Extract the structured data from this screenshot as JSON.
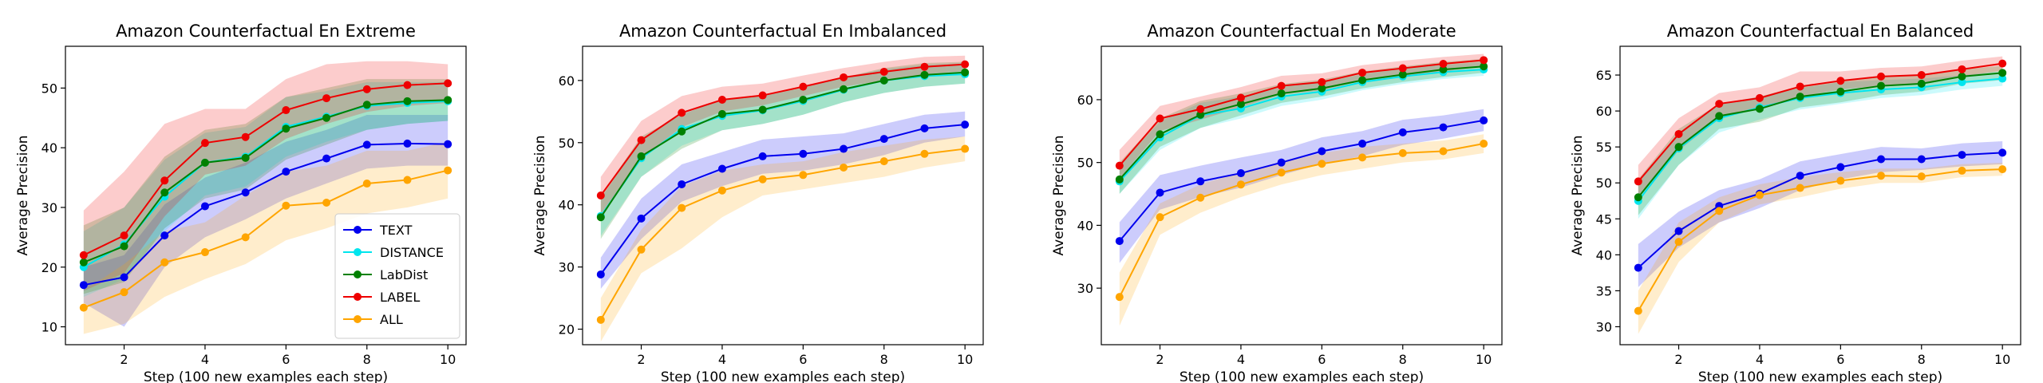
{
  "figure": {
    "series_colors": {
      "TEXT": "#0000ee",
      "DISTANCE": "#00e5ee",
      "LabDist": "#008000",
      "LABEL": "#ee0000",
      "ALL": "#ffa500"
    }
  },
  "chart_data": [
    {
      "type": "line",
      "title": "Amazon Counterfactual En Extreme",
      "xlabel": "Step (100 new examples each step)",
      "ylabel": "Average Precision",
      "xlim": [
        0.55,
        10.45
      ],
      "ylim": [
        7,
        57
      ],
      "xticks": [
        2,
        4,
        6,
        8,
        10
      ],
      "yticks": [
        10,
        20,
        30,
        40,
        50
      ],
      "legend": "lower-right",
      "x": [
        1,
        2,
        3,
        4,
        5,
        6,
        7,
        8,
        9,
        10
      ],
      "series": [
        {
          "name": "TEXT",
          "values": [
            17.0,
            18.3,
            25.3,
            30.2,
            32.5,
            36.0,
            38.2,
            40.5,
            40.7,
            40.6
          ],
          "lower": [
            14.0,
            10.0,
            20.0,
            25.0,
            28.0,
            31.5,
            34.0,
            36.5,
            37.0,
            37.0
          ],
          "upper": [
            20.0,
            22.0,
            30.5,
            35.0,
            37.5,
            41.0,
            43.0,
            45.5,
            45.5,
            45.5
          ]
        },
        {
          "name": "DISTANCE",
          "values": [
            20.0,
            23.8,
            31.8,
            37.5,
            38.5,
            43.5,
            45.2,
            47.0,
            47.5,
            47.8
          ],
          "lower": [
            15.0,
            18.0,
            26.0,
            32.0,
            33.5,
            38.5,
            41.0,
            43.0,
            44.0,
            44.5
          ],
          "upper": [
            26.0,
            30.0,
            38.0,
            42.5,
            43.5,
            48.5,
            49.5,
            51.0,
            51.0,
            51.0
          ]
        },
        {
          "name": "LabDist",
          "values": [
            20.8,
            23.5,
            32.5,
            37.5,
            38.3,
            43.2,
            45.0,
            47.2,
            47.8,
            48.0
          ],
          "lower": [
            15.5,
            17.5,
            26.5,
            31.5,
            33.0,
            38.0,
            40.5,
            43.0,
            44.0,
            44.5
          ],
          "upper": [
            27.0,
            30.0,
            38.5,
            43.0,
            44.0,
            48.5,
            50.0,
            51.5,
            51.5,
            51.5
          ]
        },
        {
          "name": "LABEL",
          "values": [
            22.0,
            25.3,
            34.5,
            40.8,
            41.8,
            46.3,
            48.3,
            49.8,
            50.5,
            50.8
          ],
          "lower": [
            16.0,
            19.0,
            28.5,
            35.5,
            37.0,
            41.5,
            44.0,
            46.0,
            47.0,
            47.5
          ],
          "upper": [
            29.5,
            36.0,
            44.0,
            46.5,
            46.5,
            51.5,
            54.0,
            54.5,
            54.5,
            54.0
          ]
        },
        {
          "name": "ALL",
          "values": [
            13.2,
            15.8,
            20.8,
            22.5,
            25.0,
            30.3,
            30.8,
            34.0,
            34.6,
            36.2
          ],
          "lower": [
            8.8,
            10.5,
            15.0,
            18.0,
            20.5,
            24.5,
            26.5,
            29.0,
            30.0,
            31.5
          ],
          "upper": [
            16.0,
            20.5,
            26.0,
            27.5,
            32.0,
            36.0,
            37.0,
            39.5,
            39.5,
            41.0
          ]
        }
      ]
    },
    {
      "type": "line",
      "title": "Amazon Counterfactual En Imbalanced",
      "xlabel": "Step (100 new examples each step)",
      "ylabel": "Average Precision",
      "xlim": [
        0.55,
        10.45
      ],
      "ylim": [
        17.5,
        65.5
      ],
      "xticks": [
        2,
        4,
        6,
        8,
        10
      ],
      "yticks": [
        20,
        30,
        40,
        50,
        60
      ],
      "x": [
        1,
        2,
        3,
        4,
        5,
        6,
        7,
        8,
        9,
        10
      ],
      "series": [
        {
          "name": "TEXT",
          "values": [
            28.8,
            37.8,
            43.3,
            45.8,
            47.8,
            48.2,
            49.0,
            50.6,
            52.3,
            52.9
          ],
          "lower": [
            26.5,
            34.5,
            40.5,
            43.0,
            45.0,
            45.5,
            46.5,
            48.0,
            50.0,
            51.0
          ],
          "upper": [
            31.5,
            41.0,
            46.5,
            48.5,
            50.5,
            51.0,
            51.5,
            53.0,
            54.5,
            55.0
          ]
        },
        {
          "name": "DISTANCE",
          "values": [
            38.2,
            47.5,
            52.2,
            54.3,
            55.2,
            56.7,
            58.5,
            60.0,
            60.7,
            61.0
          ],
          "lower": [
            35.0,
            44.5,
            49.5,
            52.0,
            53.0,
            54.5,
            56.5,
            58.0,
            59.0,
            59.5
          ],
          "upper": [
            41.0,
            50.5,
            55.0,
            56.8,
            57.5,
            58.8,
            60.5,
            61.8,
            62.5,
            62.8
          ]
        },
        {
          "name": "LabDist",
          "values": [
            38.0,
            47.8,
            51.8,
            54.6,
            55.3,
            56.9,
            58.6,
            60.0,
            60.9,
            61.3
          ],
          "lower": [
            34.5,
            44.5,
            49.0,
            52.0,
            53.0,
            54.5,
            56.5,
            58.0,
            59.0,
            59.5
          ],
          "upper": [
            41.5,
            51.0,
            54.5,
            57.0,
            57.5,
            59.0,
            60.5,
            62.0,
            62.8,
            63.0
          ]
        },
        {
          "name": "LABEL",
          "values": [
            41.5,
            50.4,
            54.8,
            56.9,
            57.6,
            59.0,
            60.5,
            61.4,
            62.2,
            62.6
          ],
          "lower": [
            38.5,
            47.5,
            52.5,
            55.0,
            56.0,
            57.5,
            59.0,
            60.0,
            61.0,
            61.5
          ],
          "upper": [
            44.5,
            53.5,
            57.5,
            59.0,
            59.5,
            60.8,
            62.0,
            63.0,
            63.8,
            64.0
          ]
        },
        {
          "name": "ALL",
          "values": [
            21.5,
            32.8,
            39.5,
            42.3,
            44.1,
            44.8,
            46.0,
            47.0,
            48.2,
            49.0
          ],
          "lower": [
            18.0,
            29.0,
            33.0,
            38.0,
            41.5,
            42.5,
            43.5,
            44.5,
            46.0,
            47.0
          ],
          "upper": [
            25.0,
            36.0,
            43.0,
            45.5,
            46.5,
            47.0,
            48.5,
            49.5,
            50.5,
            51.0
          ]
        }
      ]
    },
    {
      "type": "line",
      "title": "Amazon Counterfactual En Moderate",
      "xlabel": "Step (100 new examples each step)",
      "ylabel": "Average Precision",
      "xlim": [
        0.55,
        10.45
      ],
      "ylim": [
        21,
        68.5
      ],
      "xticks": [
        2,
        4,
        6,
        8,
        10
      ],
      "yticks": [
        30,
        40,
        50,
        60
      ],
      "x": [
        1,
        2,
        3,
        4,
        5,
        6,
        7,
        8,
        9,
        10
      ],
      "series": [
        {
          "name": "TEXT",
          "values": [
            37.5,
            45.2,
            47.0,
            48.3,
            50.0,
            51.8,
            53.0,
            54.8,
            55.6,
            56.7
          ],
          "lower": [
            34.0,
            42.5,
            44.5,
            46.0,
            48.0,
            49.8,
            51.0,
            52.8,
            53.8,
            55.0
          ],
          "upper": [
            40.5,
            48.0,
            49.5,
            50.8,
            52.0,
            54.0,
            55.0,
            56.8,
            57.5,
            58.5
          ]
        },
        {
          "name": "DISTANCE",
          "values": [
            47.0,
            54.0,
            57.5,
            58.6,
            60.5,
            61.3,
            62.8,
            63.7,
            64.4,
            64.8
          ],
          "lower": [
            45.0,
            52.0,
            55.5,
            57.0,
            59.0,
            60.0,
            61.5,
            62.5,
            63.3,
            63.8
          ],
          "upper": [
            49.5,
            56.5,
            59.5,
            60.5,
            62.0,
            62.8,
            64.0,
            65.0,
            65.5,
            66.0
          ]
        },
        {
          "name": "LabDist",
          "values": [
            47.3,
            54.5,
            57.6,
            59.3,
            61.0,
            61.8,
            63.1,
            64.0,
            64.8,
            65.3
          ],
          "lower": [
            45.0,
            52.5,
            55.5,
            57.5,
            59.5,
            60.5,
            61.8,
            62.8,
            63.6,
            64.3
          ],
          "upper": [
            50.0,
            57.0,
            59.8,
            61.0,
            62.5,
            63.2,
            64.5,
            65.3,
            66.0,
            66.5
          ]
        },
        {
          "name": "LABEL",
          "values": [
            49.5,
            57.0,
            58.5,
            60.3,
            62.2,
            62.8,
            64.3,
            65.0,
            65.7,
            66.3
          ],
          "lower": [
            47.5,
            55.0,
            56.8,
            58.8,
            60.8,
            61.5,
            63.0,
            63.8,
            64.5,
            65.3
          ],
          "upper": [
            52.0,
            59.0,
            60.5,
            62.0,
            63.8,
            64.2,
            65.5,
            66.2,
            66.8,
            67.3
          ]
        },
        {
          "name": "ALL",
          "values": [
            28.6,
            41.3,
            44.4,
            46.5,
            48.4,
            49.8,
            50.8,
            51.5,
            51.8,
            53.0
          ],
          "lower": [
            24.0,
            38.5,
            42.0,
            44.5,
            46.5,
            48.0,
            49.0,
            50.0,
            50.5,
            51.5
          ],
          "upper": [
            32.5,
            43.5,
            46.5,
            48.5,
            50.0,
            51.5,
            52.5,
            53.0,
            53.5,
            54.5
          ]
        }
      ]
    },
    {
      "type": "line",
      "title": "Amazon Counterfactual En Balanced",
      "xlabel": "Step (100 new examples each step)",
      "ylabel": "Average Precision",
      "xlim": [
        0.55,
        10.45
      ],
      "ylim": [
        27.5,
        69
      ],
      "xticks": [
        2,
        4,
        6,
        8,
        10
      ],
      "yticks": [
        30,
        35,
        40,
        45,
        50,
        55,
        60,
        65
      ],
      "x": [
        1,
        2,
        3,
        4,
        5,
        6,
        7,
        8,
        9,
        10
      ],
      "series": [
        {
          "name": "TEXT",
          "values": [
            38.2,
            43.3,
            46.8,
            48.5,
            51.0,
            52.2,
            53.3,
            53.3,
            53.9,
            54.2
          ],
          "lower": [
            35.5,
            41.0,
            44.5,
            46.5,
            49.0,
            50.5,
            51.5,
            51.8,
            52.3,
            52.6
          ],
          "upper": [
            41.5,
            46.0,
            49.0,
            50.5,
            53.0,
            54.0,
            55.0,
            54.8,
            55.5,
            55.8
          ]
        },
        {
          "name": "DISTANCE",
          "values": [
            47.5,
            54.8,
            59.0,
            60.5,
            61.8,
            62.5,
            63.0,
            63.3,
            64.0,
            64.5
          ],
          "lower": [
            45.0,
            52.5,
            57.0,
            58.8,
            60.2,
            61.0,
            61.8,
            62.2,
            63.0,
            63.5
          ],
          "upper": [
            50.0,
            57.0,
            61.0,
            62.0,
            63.2,
            64.0,
            64.3,
            64.5,
            65.0,
            65.5
          ]
        },
        {
          "name": "LabDist",
          "values": [
            48.0,
            55.0,
            59.3,
            60.3,
            62.0,
            62.7,
            63.5,
            63.8,
            64.8,
            65.3
          ],
          "lower": [
            45.5,
            52.5,
            57.5,
            58.5,
            60.5,
            61.2,
            62.2,
            62.7,
            63.8,
            64.3
          ],
          "upper": [
            50.5,
            57.5,
            61.0,
            62.0,
            63.5,
            64.2,
            64.8,
            65.0,
            65.8,
            66.3
          ]
        },
        {
          "name": "LABEL",
          "values": [
            50.2,
            56.8,
            61.0,
            61.8,
            63.4,
            64.2,
            64.8,
            65.0,
            65.8,
            66.6
          ],
          "lower": [
            48.0,
            54.5,
            59.0,
            60.3,
            62.0,
            63.0,
            63.5,
            63.8,
            64.8,
            65.6
          ],
          "upper": [
            52.5,
            59.0,
            62.5,
            63.3,
            65.5,
            65.5,
            66.0,
            66.2,
            67.0,
            67.6
          ]
        },
        {
          "name": "ALL",
          "values": [
            32.2,
            41.8,
            46.1,
            48.3,
            49.3,
            50.3,
            51.0,
            50.9,
            51.7,
            51.9
          ],
          "lower": [
            29.0,
            39.0,
            44.5,
            47.0,
            48.0,
            49.2,
            50.0,
            50.0,
            50.8,
            51.0
          ],
          "upper": [
            35.0,
            44.5,
            48.0,
            49.8,
            50.8,
            51.5,
            52.0,
            52.0,
            52.6,
            52.8
          ]
        }
      ]
    }
  ]
}
